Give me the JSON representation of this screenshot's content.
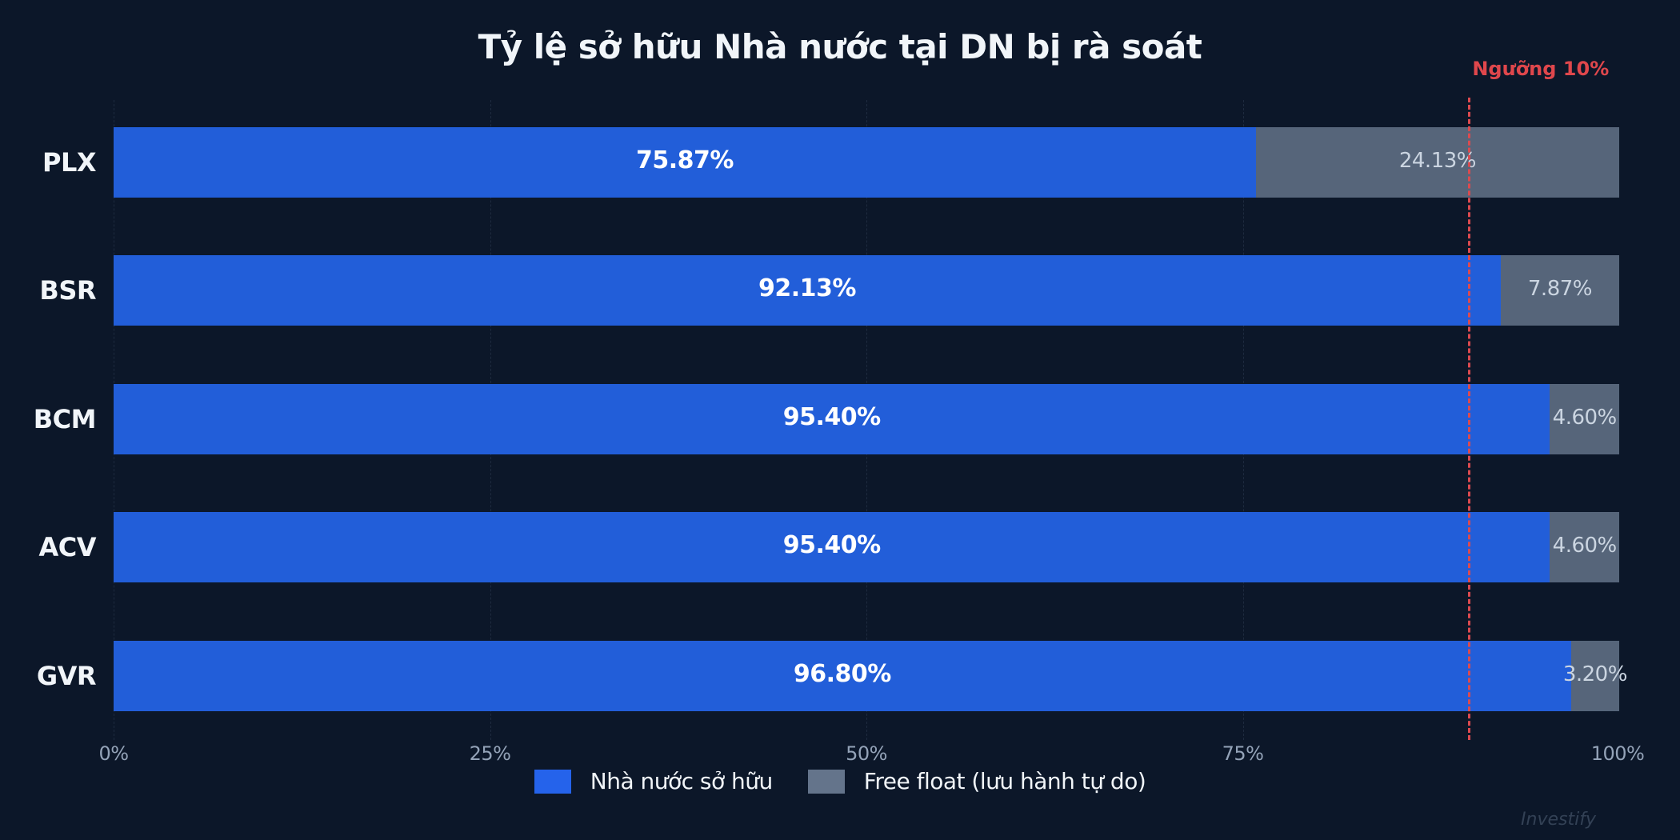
{
  "header": {
    "title": "Tỷ lệ sở hữu Nhà nước tại DN bị rà soát"
  },
  "threshold": {
    "label": "Ngưỡng 10%",
    "value": 90,
    "color": "#dc4a4f"
  },
  "legend": {
    "items": [
      {
        "label": "Nhà nước sở hữu",
        "color": "#2563eb"
      },
      {
        "label": "Free float (lưu hành tự do)",
        "color": "#64748b"
      }
    ]
  },
  "watermark": "Investify",
  "colors": {
    "background": "#0c1729",
    "state": "#225ed9",
    "free_float": "#56657a"
  },
  "chart_data": {
    "type": "bar",
    "orientation": "horizontal",
    "stacked": true,
    "title": "Tỷ lệ sở hữu Nhà nước tại DN bị rà soát",
    "xlabel": "",
    "ylabel": "",
    "categories": [
      "PLX",
      "BSR",
      "BCM",
      "ACV",
      "GVR"
    ],
    "series": [
      {
        "name": "Nhà nước sở hữu",
        "values": [
          75.87,
          92.13,
          95.4,
          95.4,
          96.8
        ],
        "labels": [
          "75.87%",
          "92.13%",
          "95.40%",
          "95.40%",
          "96.80%"
        ]
      },
      {
        "name": "Free float (lưu hành tự do)",
        "values": [
          24.13,
          7.87,
          4.6,
          4.6,
          3.2
        ],
        "labels": [
          "24.13%",
          "7.87%",
          "4.60%",
          "4.60%",
          "3.20%"
        ]
      }
    ],
    "xlim": [
      0,
      100
    ],
    "xticks": [
      0,
      25,
      50,
      75,
      100
    ],
    "xtick_labels": [
      "0%",
      "25%",
      "50%",
      "75%",
      "100%"
    ],
    "grid": "vertical dashed",
    "legend_position": "bottom",
    "annotations": [
      {
        "type": "vline",
        "x": 90,
        "style": "dashed red",
        "text": "Ngưỡng 10%"
      }
    ]
  }
}
